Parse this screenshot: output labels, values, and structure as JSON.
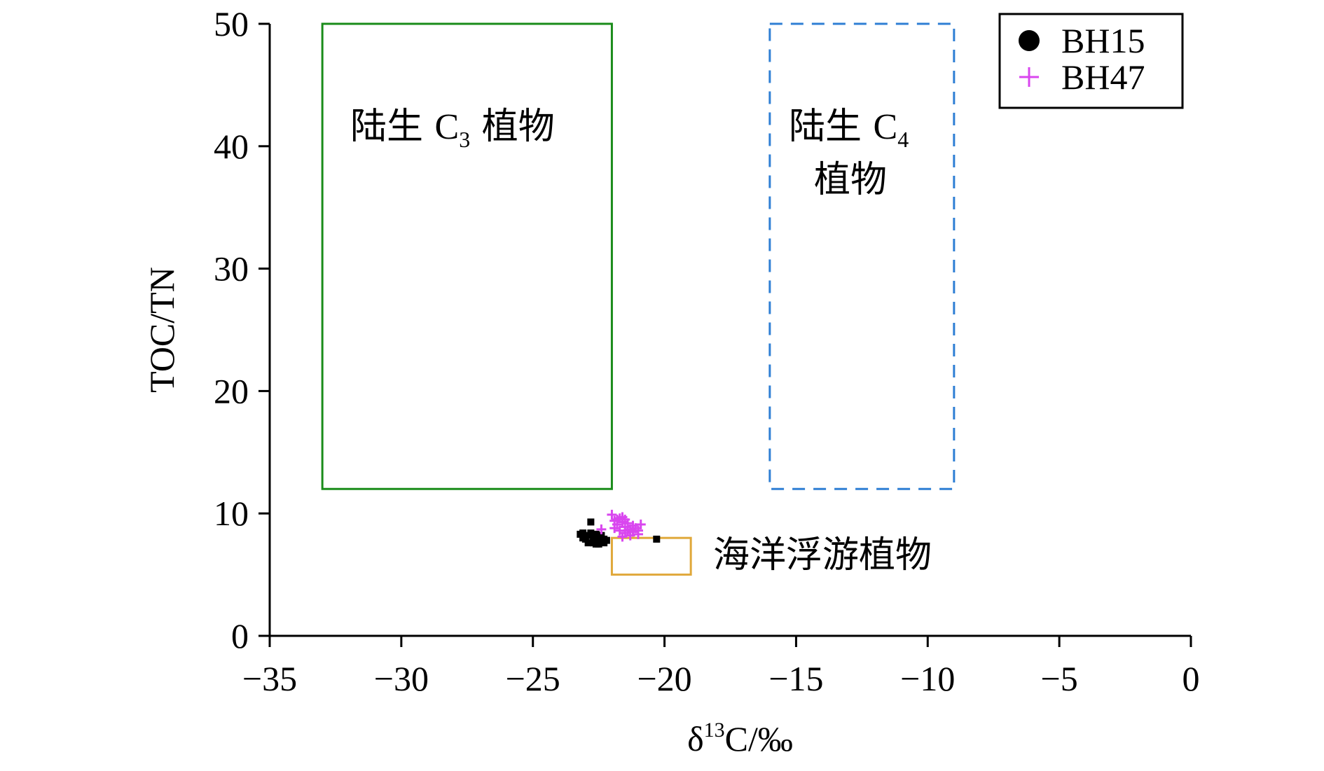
{
  "colors": {
    "c3_box": "#1a8c1a",
    "c4_box": "#2f7fd4",
    "plankton_box": "#e0a83a",
    "bh15": "#000000",
    "bh47": "#d946ef"
  },
  "chart_data": {
    "type": "scatter",
    "title": "",
    "xlabel": "δ13C/‰",
    "xlabel_parts": {
      "delta": "δ",
      "superscript": "13",
      "rest": "C/‰"
    },
    "ylabel": "TOC/TN",
    "xlim": [
      -35,
      0
    ],
    "ylim": [
      0,
      50
    ],
    "xticks": [
      -35,
      -30,
      -25,
      -20,
      -15,
      -10,
      -5,
      0
    ],
    "xtick_labels": [
      "−35",
      "−30",
      "−25",
      "−20",
      "−15",
      "−10",
      "−5",
      "0"
    ],
    "yticks": [
      0,
      10,
      20,
      30,
      40,
      50
    ],
    "ytick_labels": [
      "0",
      "10",
      "20",
      "30",
      "40",
      "50"
    ],
    "grid": false,
    "legend_position": "top-right",
    "legend": [
      {
        "name": "BH15",
        "marker": "circle"
      },
      {
        "name": "BH47",
        "marker": "plus"
      }
    ],
    "regions": [
      {
        "name": "陆生 C3 植物",
        "label_lines": [
          {
            "parts": [
              "陆生 ",
              "C",
              "3",
              " 植物"
            ]
          }
        ],
        "x": [
          -33,
          -22
        ],
        "y": [
          12,
          50
        ],
        "style": "solid",
        "color_key": "c3_box"
      },
      {
        "name": "陆生 C4 植物",
        "label_lines": [
          {
            "parts": [
              "陆生 ",
              "C",
              "4",
              ""
            ]
          },
          {
            "parts": [
              "植物",
              "",
              "",
              ""
            ]
          }
        ],
        "x": [
          -16,
          -9
        ],
        "y": [
          12,
          50
        ],
        "style": "dashed",
        "color_key": "c4_box"
      },
      {
        "name": "海洋浮游植物",
        "label_lines": [
          {
            "parts": [
              "海洋浮游植物",
              "",
              "",
              ""
            ]
          }
        ],
        "x": [
          -22,
          -19
        ],
        "y": [
          5,
          8
        ],
        "style": "solid",
        "color_key": "plankton_box"
      }
    ],
    "series": [
      {
        "name": "BH15",
        "marker": "circle",
        "points": [
          [
            -23.2,
            8.3
          ],
          [
            -23.1,
            8.0
          ],
          [
            -23.0,
            7.9
          ],
          [
            -22.9,
            8.2
          ],
          [
            -22.8,
            8.4
          ],
          [
            -22.8,
            9.3
          ],
          [
            -22.7,
            7.6
          ],
          [
            -22.7,
            8.1
          ],
          [
            -22.6,
            7.8
          ],
          [
            -22.6,
            8.3
          ],
          [
            -22.5,
            7.5
          ],
          [
            -22.5,
            8.0
          ],
          [
            -22.4,
            7.7
          ],
          [
            -22.4,
            8.2
          ],
          [
            -22.3,
            7.6
          ],
          [
            -22.3,
            7.9
          ],
          [
            -22.2,
            7.8
          ],
          [
            -22.9,
            7.6
          ],
          [
            -23.1,
            8.4
          ],
          [
            -22.6,
            7.5
          ],
          [
            -20.3,
            7.9
          ]
        ]
      },
      {
        "name": "BH47",
        "marker": "plus",
        "points": [
          [
            -22.0,
            9.9
          ],
          [
            -21.9,
            9.4
          ],
          [
            -21.8,
            9.1
          ],
          [
            -21.7,
            9.6
          ],
          [
            -21.6,
            9.3
          ],
          [
            -21.5,
            8.9
          ],
          [
            -21.4,
            9.2
          ],
          [
            -21.3,
            8.7
          ],
          [
            -21.2,
            8.5
          ],
          [
            -21.1,
            8.8
          ],
          [
            -20.9,
            9.1
          ],
          [
            -21.5,
            8.4
          ],
          [
            -21.3,
            8.2
          ],
          [
            -21.0,
            8.3
          ],
          [
            -21.7,
            8.6
          ],
          [
            -21.9,
            8.8
          ],
          [
            -21.6,
            8.1
          ],
          [
            -21.4,
            8.6
          ],
          [
            -22.4,
            8.7
          ],
          [
            -21.8,
            9.5
          ],
          [
            -21.6,
            9.7
          ],
          [
            -21.2,
            9.0
          ],
          [
            -21.5,
            9.5
          ],
          [
            -21.0,
            8.6
          ]
        ]
      }
    ]
  }
}
